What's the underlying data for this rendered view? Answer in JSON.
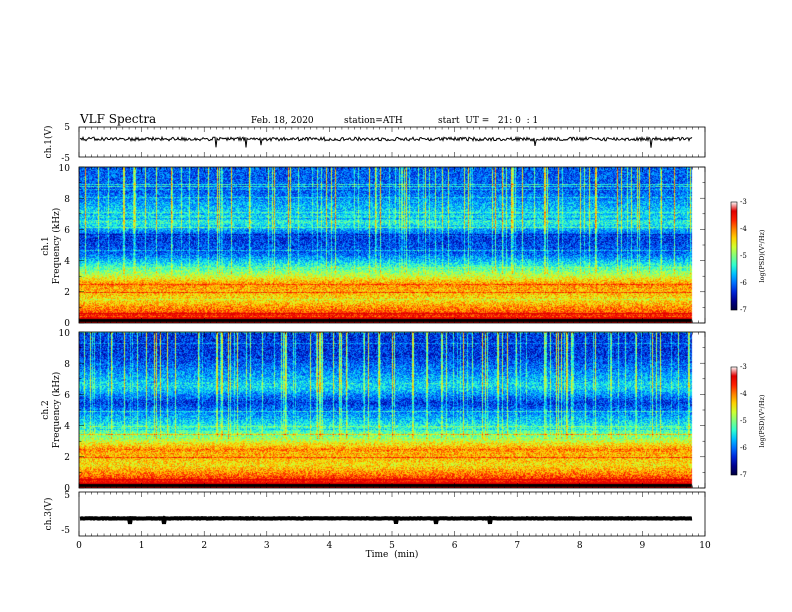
{
  "header": {
    "title": "VLF Spectra",
    "date": "Feb. 18, 2020",
    "station": "station=ATH",
    "start": "start  UT =   21: 0  : 1"
  },
  "colors": {
    "colormap": [
      "#000040",
      "#00008c",
      "#0026d8",
      "#0070ff",
      "#00c0ff",
      "#30ffcf",
      "#80ff80",
      "#d0ff30",
      "#ffd000",
      "#ff8000",
      "#ff2000",
      "#e00000",
      "#ffffff"
    ],
    "trace": "#000000"
  },
  "chart_data": [
    {
      "type": "line",
      "panel": "ch1-waveform",
      "ylabel": "ch.1(V)",
      "ylim": [
        -5,
        5
      ],
      "yticks": [
        "5",
        "-5"
      ],
      "xlim": [
        0,
        10
      ],
      "series": [
        {
          "approx_level_v": 1.0,
          "noise_amplitude_v": 0.6,
          "end_min": 9.8
        }
      ]
    },
    {
      "type": "heatmap",
      "panel": "ch1-spectrogram",
      "ylabel": "ch.1\nFrequency (kHz)",
      "ylim": [
        0,
        10
      ],
      "yticks": [
        "0",
        "2",
        "4",
        "6",
        "8",
        "10"
      ],
      "xlim": [
        0,
        10
      ],
      "end_min": 9.8,
      "colorbar": {
        "label": "log(PSD)(V²/Hz)",
        "range": [
          -7,
          -3
        ],
        "ticks": [
          "-3",
          "-4",
          "-5",
          "-6",
          "-7"
        ]
      },
      "bands_khz": [
        {
          "f": 0.2,
          "level": -2.8
        },
        {
          "f": 0.8,
          "level": -3.6
        },
        {
          "f": 1.5,
          "level": -4.2
        },
        {
          "f": 2.5,
          "level": -3.8
        },
        {
          "f": 3.3,
          "level": -4.8
        },
        {
          "f": 4.5,
          "level": -6.0
        },
        {
          "f": 5.5,
          "level": -6.2
        },
        {
          "f": 6.5,
          "level": -5.2
        },
        {
          "f": 8.5,
          "level": -6.0
        }
      ]
    },
    {
      "type": "heatmap",
      "panel": "ch2-spectrogram",
      "ylabel": "ch.2\nFrequency (kHz)",
      "ylim": [
        0,
        10
      ],
      "yticks": [
        "0",
        "2",
        "4",
        "6",
        "8",
        "10"
      ],
      "xlim": [
        0,
        10
      ],
      "end_min": 9.8,
      "colorbar": {
        "label": "log(PSD)(V²/Hz)",
        "range": [
          -7,
          -3
        ],
        "ticks": [
          "-3",
          "-4",
          "-5",
          "-6",
          "-7"
        ]
      },
      "bands_khz": [
        {
          "f": 0.2,
          "level": -2.8
        },
        {
          "f": 0.8,
          "level": -3.6
        },
        {
          "f": 1.5,
          "level": -4.2
        },
        {
          "f": 2.5,
          "level": -3.8
        },
        {
          "f": 3.3,
          "level": -4.8
        },
        {
          "f": 4.5,
          "level": -5.6
        },
        {
          "f": 5.5,
          "level": -6.2
        },
        {
          "f": 6.5,
          "level": -5.4
        },
        {
          "f": 8.5,
          "level": -6.2
        }
      ]
    },
    {
      "type": "line",
      "panel": "ch3-waveform",
      "ylabel": "ch.3(V)",
      "ylim": [
        -5,
        5
      ],
      "yticks": [
        "5",
        "0",
        "-5"
      ],
      "xlim": [
        0,
        10
      ],
      "xticks": [
        "0",
        "1",
        "2",
        "3",
        "4",
        "5",
        "6",
        "7",
        "8",
        "9",
        "10"
      ],
      "xlabel": "Time  (min)",
      "series": [
        {
          "approx_level_v": -1.0,
          "noise_amplitude_v": 0.3,
          "end_min": 9.8
        }
      ]
    }
  ]
}
